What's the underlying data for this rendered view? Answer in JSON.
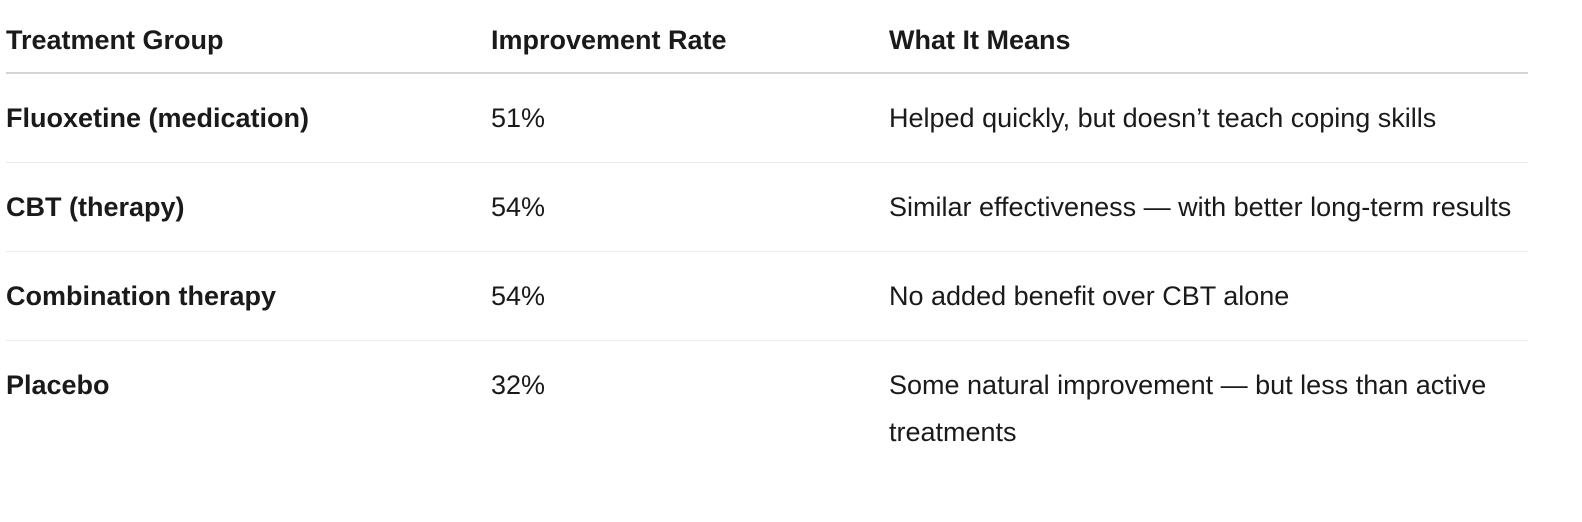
{
  "table": {
    "headers": [
      "Treatment Group",
      "Improvement Rate",
      "What It Means"
    ],
    "rows": [
      {
        "group": "Fluoxetine (medication)",
        "rate": "51%",
        "meaning": "Helped quickly, but doesn’t teach coping skills"
      },
      {
        "group": "CBT (therapy)",
        "rate": "54%",
        "meaning": "Similar effectiveness — with better long-term results"
      },
      {
        "group": "Combination therapy",
        "rate": "54%",
        "meaning": "No added benefit over CBT alone"
      },
      {
        "group": "Placebo",
        "rate": "32%",
        "meaning": "Some natural improvement — but less than active treatments"
      }
    ]
  }
}
